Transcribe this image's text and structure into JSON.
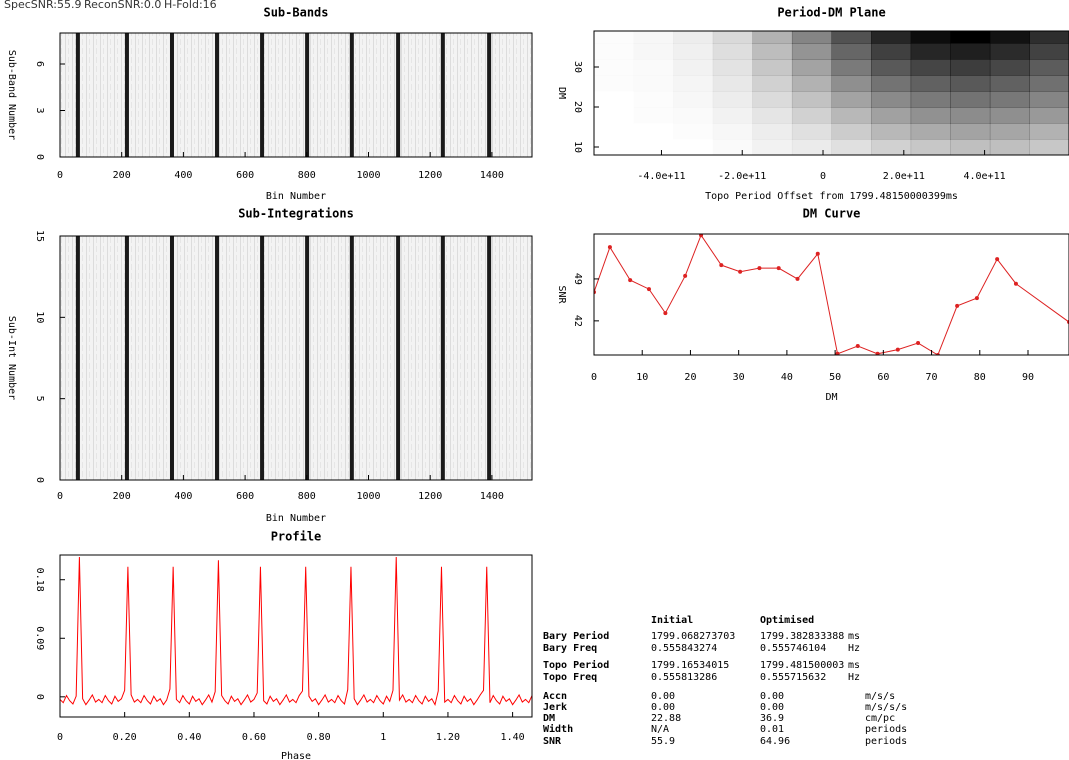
{
  "header": {
    "items": [
      "SpecSNR:55.9",
      "ReconSNR:0.0",
      "H-Fold:16"
    ]
  },
  "chart_data": [
    {
      "type": "stripes",
      "title": "Sub-Bands",
      "xlabel": "Bin Number",
      "ylabel": "Sub-Band Number",
      "x": [
        58,
        217,
        363,
        509,
        655,
        801,
        946,
        1096,
        1241,
        1391
      ],
      "color": "#1a1a1a",
      "xlim": [
        0,
        1530
      ],
      "ylim": [
        0,
        8
      ],
      "xticks": [
        0,
        200,
        400,
        600,
        800,
        1000,
        1200,
        1400
      ],
      "yticks": [
        0,
        3,
        6
      ]
    },
    {
      "type": "heatmap",
      "title": "Period-DM Plane",
      "xlabel": "Topo Period Offset from 1799.48150000399ms",
      "ylabel": "DM",
      "x": [
        -518000000000.0,
        -420000000000.0,
        -322000000000.0,
        -224000000000.0,
        -126000000000.0,
        -28000000000.0,
        70000000000.0,
        168000000000.0,
        266000000000.0,
        364000000000.0,
        462000000000.0,
        560000000000.0
      ],
      "y": [
        10,
        14,
        18,
        22,
        26,
        30,
        34,
        38
      ],
      "z": [
        [
          0,
          0,
          0,
          0.02,
          0.05,
          0.08,
          0.12,
          0.18,
          0.22,
          0.25,
          0.25,
          0.22
        ],
        [
          0,
          0,
          0.01,
          0.03,
          0.07,
          0.12,
          0.2,
          0.28,
          0.33,
          0.36,
          0.35,
          0.3
        ],
        [
          0,
          0.01,
          0.02,
          0.05,
          0.1,
          0.18,
          0.28,
          0.37,
          0.43,
          0.45,
          0.44,
          0.4
        ],
        [
          0,
          0.01,
          0.03,
          0.07,
          0.14,
          0.24,
          0.36,
          0.46,
          0.52,
          0.55,
          0.53,
          0.48
        ],
        [
          0.01,
          0.02,
          0.04,
          0.09,
          0.18,
          0.3,
          0.44,
          0.55,
          0.62,
          0.65,
          0.62,
          0.56
        ],
        [
          0.01,
          0.02,
          0.05,
          0.11,
          0.22,
          0.36,
          0.52,
          0.65,
          0.73,
          0.76,
          0.72,
          0.64
        ],
        [
          0.01,
          0.03,
          0.06,
          0.13,
          0.26,
          0.42,
          0.6,
          0.75,
          0.85,
          0.88,
          0.83,
          0.74
        ],
        [
          0.01,
          0.03,
          0.07,
          0.15,
          0.3,
          0.48,
          0.68,
          0.85,
          0.95,
          1.0,
          0.93,
          0.82
        ]
      ],
      "color": "#000000",
      "xlim": [
        -567000000000.0,
        609000000000.0
      ],
      "ylim": [
        8,
        39
      ],
      "xticks": [
        {
          "value": -400000000000.0,
          "label": "-4.0e+11"
        },
        {
          "value": -200000000000.0,
          "label": "-2.0e+11"
        },
        0,
        {
          "value": 200000000000.0,
          "label": "2.0e+11"
        },
        {
          "value": 400000000000.0,
          "label": "4.0e+11"
        }
      ],
      "yticks": [
        10,
        20,
        30
      ]
    },
    {
      "type": "stripes",
      "title": "Sub-Integrations",
      "xlabel": "Bin Number",
      "ylabel": "Sub-Int Number",
      "x": [
        58,
        217,
        363,
        509,
        655,
        801,
        946,
        1096,
        1241,
        1391
      ],
      "color": "#1a1a1a",
      "xlim": [
        0,
        1530
      ],
      "ylim": [
        0,
        15
      ],
      "xticks": [
        0,
        200,
        400,
        600,
        800,
        1000,
        1200,
        1400
      ],
      "yticks": [
        0,
        5,
        10,
        15
      ]
    },
    {
      "type": "line",
      "title": "DM Curve",
      "xlabel": "DM",
      "ylabel": "SNR",
      "markers": true,
      "color": "#dd2222",
      "x": [
        0,
        3.3,
        7.5,
        11.4,
        14.8,
        18.9,
        22.2,
        26.4,
        30.3,
        34.3,
        38.3,
        42.2,
        46.4,
        50.5,
        54.7,
        58.8,
        63,
        67.2,
        71.3,
        75.3,
        79.4,
        83.6,
        87.5,
        98.5
      ],
      "values": [
        46.8,
        54.3,
        48.8,
        47.3,
        43.3,
        49.5,
        56.3,
        51.3,
        50.2,
        50.8,
        50.8,
        49,
        53.2,
        36.5,
        37.8,
        36.5,
        37.2,
        38.3,
        36.3,
        44.5,
        45.8,
        52.3,
        48.2,
        41.8
      ],
      "xlim": [
        0,
        98.5
      ],
      "ylim": [
        36.3,
        56.5
      ],
      "xticks": [
        0,
        10,
        20,
        30,
        40,
        50,
        60,
        70,
        80,
        90
      ],
      "yticks": [
        42,
        49
      ]
    },
    {
      "type": "line",
      "title": "Profile",
      "xlabel": "Phase",
      "markers": false,
      "color": "#ff0000",
      "x": [
        0,
        0.01,
        0.02,
        0.03,
        0.04,
        0.05,
        0.06,
        0.07,
        0.08,
        0.09,
        0.1,
        0.11,
        0.12,
        0.13,
        0.14,
        0.15,
        0.16,
        0.17,
        0.18,
        0.19,
        0.2,
        0.21,
        0.22,
        0.23,
        0.24,
        0.25,
        0.26,
        0.27,
        0.28,
        0.29,
        0.3,
        0.31,
        0.32,
        0.33,
        0.34,
        0.35,
        0.36,
        0.37,
        0.38,
        0.39,
        0.4,
        0.41,
        0.42,
        0.43,
        0.44,
        0.45,
        0.46,
        0.47,
        0.48,
        0.49,
        0.5,
        0.51,
        0.52,
        0.53,
        0.54,
        0.55,
        0.56,
        0.57,
        0.58,
        0.59,
        0.6,
        0.61,
        0.62,
        0.63,
        0.64,
        0.65,
        0.66,
        0.67,
        0.68,
        0.69,
        0.7,
        0.71,
        0.72,
        0.73,
        0.74,
        0.75,
        0.76,
        0.77,
        0.78,
        0.79,
        0.8,
        0.81,
        0.82,
        0.83,
        0.84,
        0.85,
        0.86,
        0.87,
        0.88,
        0.89,
        0.9,
        0.91,
        0.92,
        0.93,
        0.94,
        0.95,
        0.96,
        0.97,
        0.98,
        0.99,
        1,
        1.01,
        1.02,
        1.03,
        1.04,
        1.05,
        1.06,
        1.07,
        1.08,
        1.09,
        1.1,
        1.11,
        1.12,
        1.13,
        1.14,
        1.15,
        1.16,
        1.17,
        1.18,
        1.19,
        1.2,
        1.21,
        1.22,
        1.23,
        1.24,
        1.25,
        1.26,
        1.27,
        1.28,
        1.29,
        1.3,
        1.31,
        1.32,
        1.33,
        1.34,
        1.35,
        1.36,
        1.37,
        1.38,
        1.39,
        1.4,
        1.41,
        1.42,
        1.43,
        1.44,
        1.45,
        1.46
      ],
      "values": [
        -0.004,
        -0.009,
        0.002,
        -0.006,
        -0.011,
        0.001,
        0.215,
        -0.003,
        -0.012,
        -0.005,
        0.003,
        -0.008,
        -0.004,
        -0.009,
        0.002,
        -0.006,
        -0.011,
        0.001,
        -0.007,
        -0.003,
        0.01,
        0.2,
        0.003,
        -0.008,
        -0.004,
        -0.009,
        0.002,
        -0.006,
        -0.011,
        0.001,
        -0.007,
        -0.003,
        -0.012,
        -0.005,
        0.012,
        0.2,
        -0.004,
        -0.009,
        0.002,
        -0.006,
        -0.011,
        0.001,
        -0.007,
        -0.003,
        -0.012,
        -0.005,
        0.003,
        -0.008,
        0.008,
        0.21,
        0.002,
        -0.006,
        -0.011,
        0.001,
        -0.007,
        -0.003,
        -0.012,
        -0.005,
        0.003,
        -0.008,
        -0.004,
        0.006,
        0.2,
        -0.006,
        -0.011,
        0.001,
        -0.007,
        -0.003,
        -0.012,
        -0.005,
        0.003,
        -0.008,
        -0.004,
        -0.009,
        0.002,
        0.009,
        0.2,
        0.001,
        -0.007,
        -0.003,
        -0.012,
        -0.005,
        0.003,
        -0.008,
        -0.004,
        -0.009,
        0.002,
        -0.006,
        -0.011,
        0.011,
        0.2,
        -0.003,
        -0.012,
        -0.005,
        0.003,
        -0.008,
        -0.004,
        -0.009,
        0.002,
        -0.006,
        -0.011,
        0.001,
        -0.007,
        0.01,
        0.215,
        -0.005,
        0.003,
        -0.008,
        -0.004,
        -0.009,
        0.002,
        -0.006,
        -0.011,
        0.001,
        -0.007,
        -0.003,
        -0.012,
        0.009,
        0.2,
        -0.008,
        -0.004,
        -0.009,
        0.002,
        -0.006,
        -0.011,
        0.001,
        -0.007,
        -0.003,
        -0.012,
        -0.005,
        0.003,
        0.01,
        0.2,
        -0.009,
        0.002,
        -0.006,
        -0.011,
        0.001,
        -0.007,
        -0.003,
        -0.012,
        -0.005,
        0.003,
        -0.008,
        -0.004,
        -0.009,
        0.002
      ],
      "xlim": [
        0,
        1.46
      ],
      "ylim": [
        -0.031,
        0.218
      ],
      "xticks": [
        0,
        {
          "value": 0.2,
          "label": "0.20"
        },
        {
          "value": 0.4,
          "label": "0.40"
        },
        {
          "value": 0.6,
          "label": "0.60"
        },
        {
          "value": 0.8,
          "label": "0.80"
        },
        1,
        {
          "value": 1.2,
          "label": "1.20"
        },
        {
          "value": 1.4,
          "label": "1.40"
        }
      ],
      "yticks": [
        0,
        0.09,
        0.18
      ]
    }
  ],
  "table": {
    "columns": [
      "Initial",
      "Optimised"
    ],
    "rows": [
      [
        "Bary Period",
        "1799.068273703",
        "1799.382833388",
        "ms"
      ],
      [
        "Bary Freq",
        "0.555843274",
        "0.555746104",
        "Hz"
      ],
      [
        "Topo Period",
        "1799.16534015",
        "1799.481500003",
        "ms"
      ],
      [
        "Topo Freq",
        "0.555813286",
        "0.555715632",
        "Hz"
      ],
      [
        "Accn",
        "0.00",
        "0.00",
        "m/s/s"
      ],
      [
        "Jerk",
        "0.00",
        "0.00",
        "m/s/s/s"
      ],
      [
        "DM",
        "22.88",
        "36.9",
        "cm/pc"
      ],
      [
        "Width",
        "N/A",
        "0.01",
        "periods"
      ],
      [
        "SNR",
        "55.9",
        "64.96",
        "periods"
      ]
    ]
  }
}
